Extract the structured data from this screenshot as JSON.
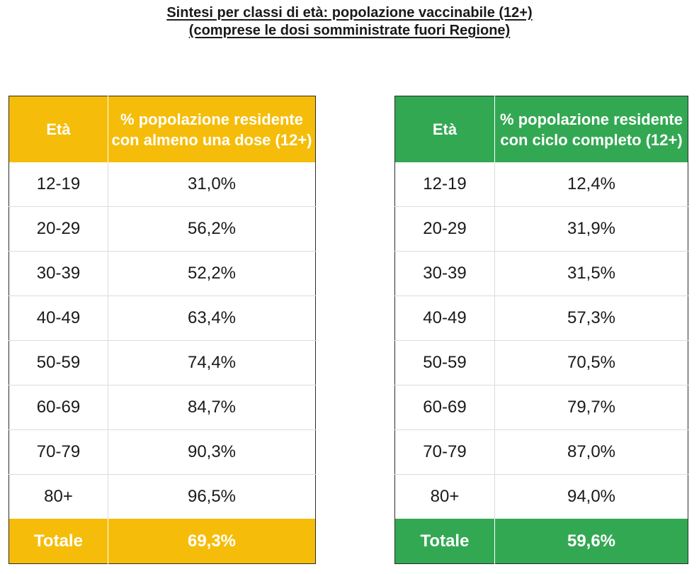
{
  "title": {
    "line1": "Sintesi per classi di età: popolazione vaccinabile (12+)",
    "line2": "(comprese le dosi somministrate fuori Regione)"
  },
  "colors": {
    "first_dose_header": "#f5bd09",
    "full_cycle_header": "#33a853"
  },
  "first_dose_table": {
    "col_age": "Età",
    "col_pct": "% popolazione residente con almeno una dose (12+)",
    "rows": [
      {
        "age": "12-19",
        "pct": "31,0%"
      },
      {
        "age": "20-29",
        "pct": "56,2%"
      },
      {
        "age": "30-39",
        "pct": "52,2%"
      },
      {
        "age": "40-49",
        "pct": "63,4%"
      },
      {
        "age": "50-59",
        "pct": "74,4%"
      },
      {
        "age": "60-69",
        "pct": "84,7%"
      },
      {
        "age": "70-79",
        "pct": "90,3%"
      },
      {
        "age": "80+",
        "pct": "96,5%"
      }
    ],
    "total_label": "Totale",
    "total_value": "69,3%"
  },
  "full_cycle_table": {
    "col_age": "Età",
    "col_pct": "% popolazione residente con ciclo completo (12+)",
    "rows": [
      {
        "age": "12-19",
        "pct": "12,4%"
      },
      {
        "age": "20-29",
        "pct": "31,9%"
      },
      {
        "age": "30-39",
        "pct": "31,5%"
      },
      {
        "age": "40-49",
        "pct": "57,3%"
      },
      {
        "age": "50-59",
        "pct": "70,5%"
      },
      {
        "age": "60-69",
        "pct": "79,7%"
      },
      {
        "age": "70-79",
        "pct": "87,0%"
      },
      {
        "age": "80+",
        "pct": "94,0%"
      }
    ],
    "total_label": "Totale",
    "total_value": "59,6%"
  }
}
